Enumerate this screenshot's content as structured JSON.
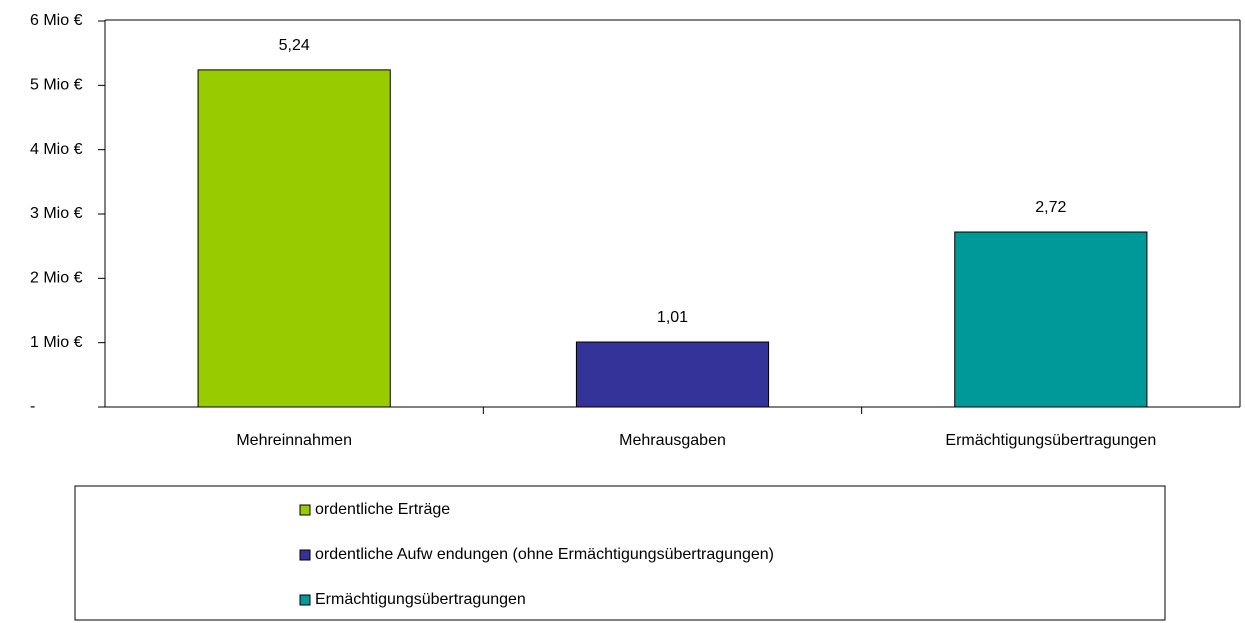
{
  "chart_data": {
    "type": "bar",
    "categories": [
      "Mehreinnahmen",
      "Mehrausgaben",
      "Ermächtigungsübertragungen"
    ],
    "series": [
      {
        "name": "ordentliche Erträge",
        "color": "#99cc00",
        "values": [
          5.24,
          null,
          null
        ],
        "value_labels": [
          "5,24",
          null,
          null
        ]
      },
      {
        "name": "ordentliche Aufw endungen (ohne Ermächtigungsübertragungen)",
        "color": "#333399",
        "values": [
          null,
          1.01,
          null
        ],
        "value_labels": [
          null,
          "1,01",
          null
        ]
      },
      {
        "name": "Ermächtigungsübertragungen",
        "color": "#009999",
        "values": [
          null,
          null,
          2.72
        ],
        "value_labels": [
          null,
          null,
          "2,72"
        ]
      }
    ],
    "ylim": [
      0,
      6
    ],
    "yticks": [
      {
        "value": 0,
        "label": "-"
      },
      {
        "value": 1,
        "label": "1 Mio €"
      },
      {
        "value": 2,
        "label": "2 Mio €"
      },
      {
        "value": 3,
        "label": "3 Mio €"
      },
      {
        "value": 4,
        "label": "4 Mio €"
      },
      {
        "value": 5,
        "label": "5 Mio €"
      },
      {
        "value": 6,
        "label": "6 Mio €"
      }
    ],
    "legend": "bottom"
  }
}
